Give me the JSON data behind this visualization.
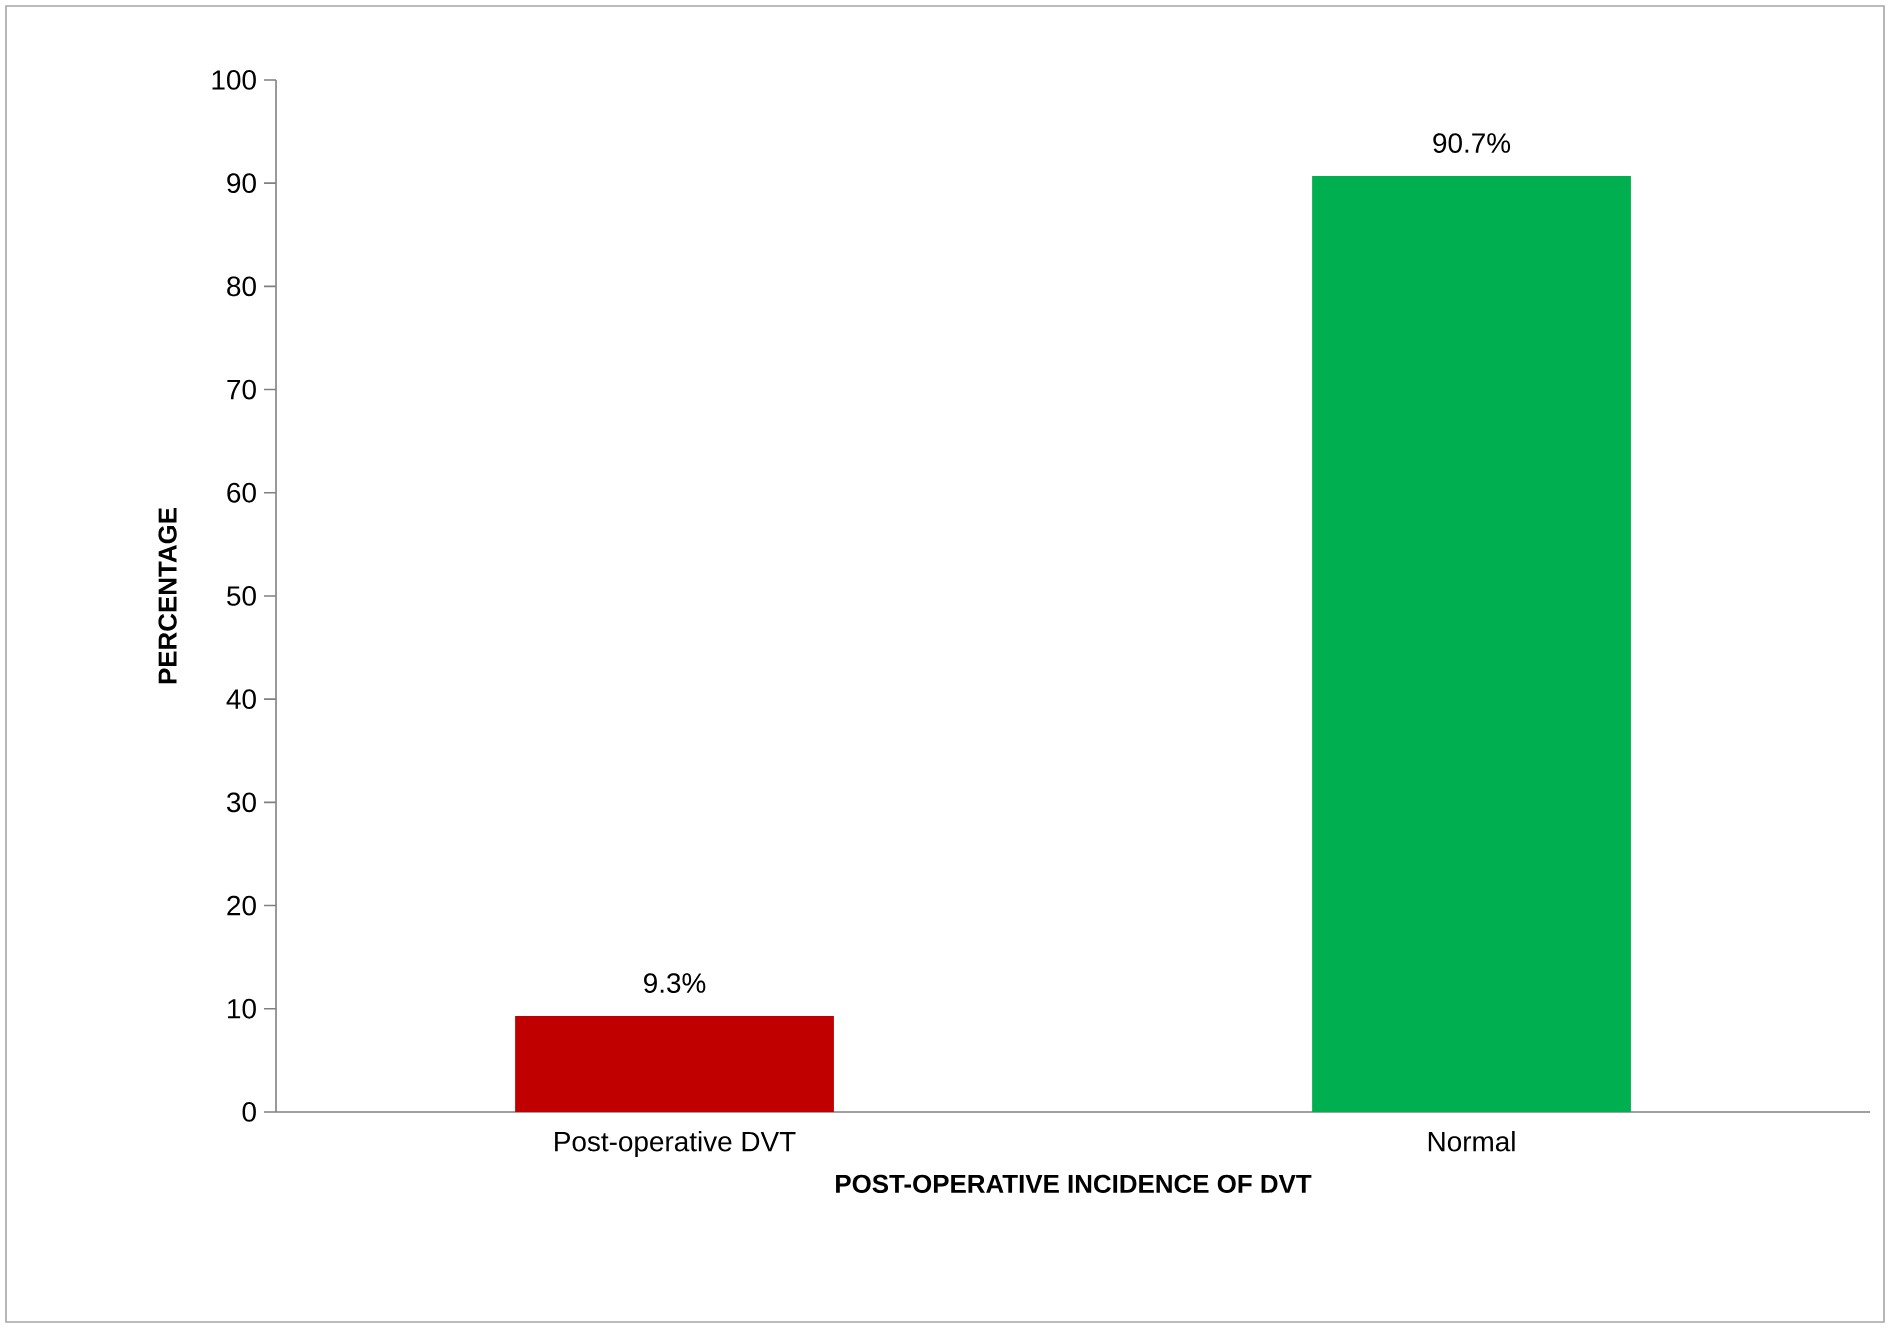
{
  "chart_data": {
    "type": "bar",
    "xlabel": "POST-OPERATIVE INCIDENCE OF DVT",
    "ylabel": "PERCENTAGE",
    "categories": [
      "Post-operative DVT",
      "Normal"
    ],
    "values": [
      9.3,
      90.7
    ],
    "colors": [
      "#c00000",
      "#00b050"
    ],
    "value_labels": [
      "9.3%",
      "90.7%"
    ],
    "ylim": [
      0,
      100
    ],
    "yticks": [
      0,
      10,
      20,
      30,
      40,
      50,
      60,
      70,
      80,
      90,
      100
    ]
  }
}
